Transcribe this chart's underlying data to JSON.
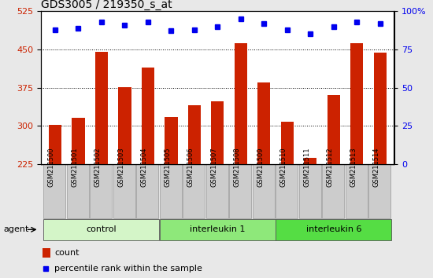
{
  "title": "GDS3005 / 219350_s_at",
  "samples": [
    "GSM211500",
    "GSM211501",
    "GSM211502",
    "GSM211503",
    "GSM211504",
    "GSM211505",
    "GSM211506",
    "GSM211507",
    "GSM211508",
    "GSM211509",
    "GSM211510",
    "GSM211511",
    "GSM211512",
    "GSM211513",
    "GSM211514"
  ],
  "counts": [
    302,
    315,
    445,
    376,
    415,
    318,
    340,
    348,
    462,
    385,
    308,
    237,
    360,
    462,
    443
  ],
  "percentile_ranks": [
    88,
    89,
    93,
    91,
    93,
    87,
    88,
    90,
    95,
    92,
    88,
    85,
    90,
    93,
    92
  ],
  "groups": [
    {
      "label": "control",
      "start": 0,
      "end": 5,
      "color": "#d4f5c8"
    },
    {
      "label": "interleukin 1",
      "start": 5,
      "end": 10,
      "color": "#8ee87a"
    },
    {
      "label": "interleukin 6",
      "start": 10,
      "end": 15,
      "color": "#55dd44"
    }
  ],
  "ylim_left": [
    225,
    525
  ],
  "yticks_left": [
    225,
    300,
    375,
    450,
    525
  ],
  "grid_yticks": [
    300,
    375,
    450
  ],
  "ylim_right": [
    0,
    100
  ],
  "yticks_right": [
    0,
    25,
    50,
    75,
    100
  ],
  "bar_color": "#cc2200",
  "dot_color": "#0000ee",
  "grid_color": "#000000",
  "bg_color": "#e8e8e8",
  "plot_bg": "#ffffff",
  "bar_bg_color": "#cccccc",
  "title_fontsize": 10,
  "tick_color_left": "#cc2200",
  "tick_color_right": "#0000ee"
}
